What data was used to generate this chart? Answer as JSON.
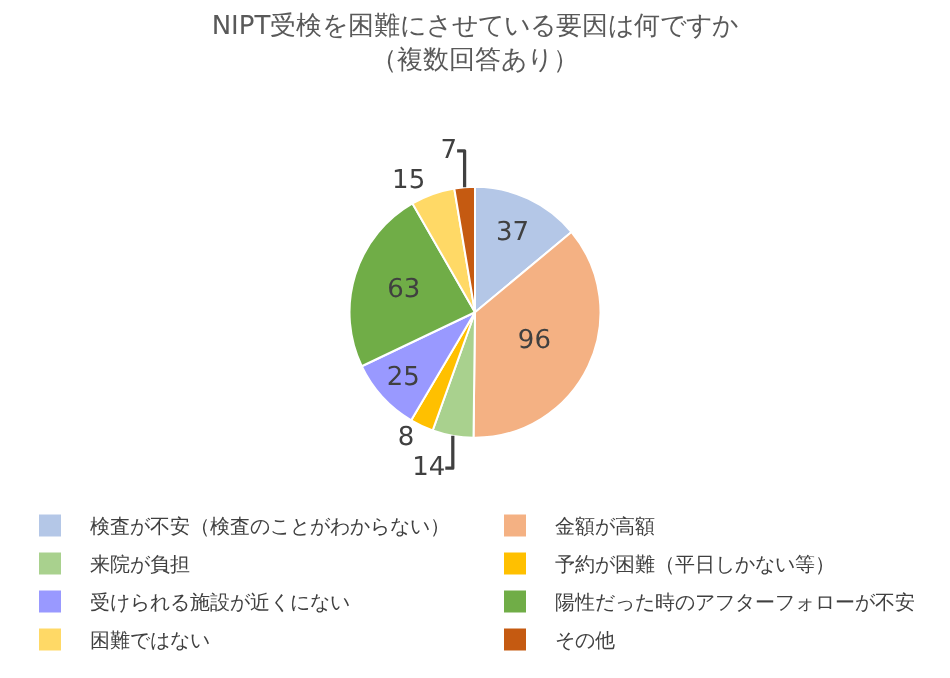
{
  "chart_data": {
    "type": "pie",
    "title": "NIPT受検を困難にさせている要因は何ですか",
    "subtitle": "（複数回答あり）",
    "categories": [
      "検査が不安（検査のことがわからない）",
      "金額が高額",
      "来院が負担",
      "予約が困難（平日しかない等）",
      "受けられる施設が近くにない",
      "陽性だった時のアフターフォローが不安",
      "困難ではない",
      "その他"
    ],
    "values": [
      37,
      96,
      14,
      8,
      25,
      63,
      15,
      7
    ],
    "colors": [
      "#b4c7e7",
      "#f4b183",
      "#a9d18e",
      "#ffc000",
      "#9999ff",
      "#70ad47",
      "#ffd966",
      "#c55a11"
    ],
    "data_labels": true,
    "legend": "bottom"
  }
}
